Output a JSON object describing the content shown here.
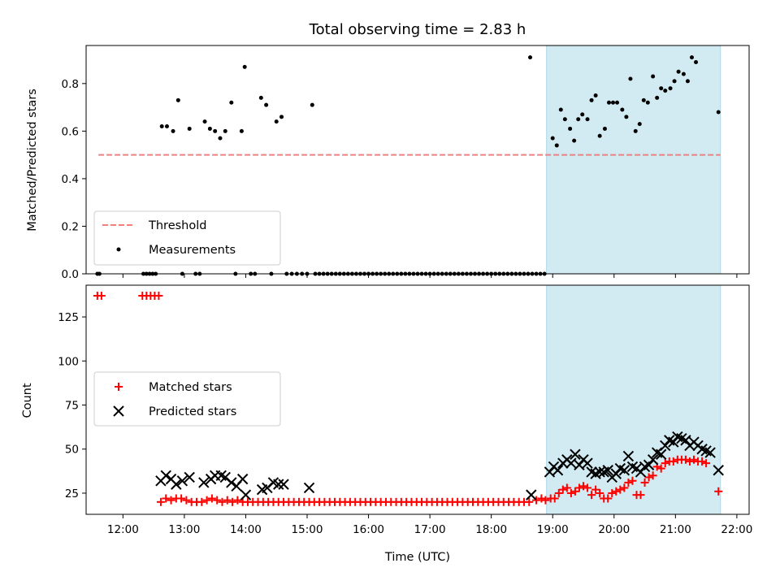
{
  "title": "Total observing time = 2.83 h",
  "colors": {
    "shade": "#add8e6",
    "threshold": "#f08080",
    "measurement": "#000000",
    "matched": "#ff0000",
    "predicted": "#000000"
  },
  "chart_data": [
    {
      "type": "scatter",
      "ylabel": "Matched/Predicted stars",
      "xlim": [
        "11:24",
        "22:12"
      ],
      "ylim": [
        0,
        0.96
      ],
      "yticks": [
        0.0,
        0.2,
        0.4,
        0.6,
        0.8
      ],
      "ytick_labels": [
        "0.0",
        "0.2",
        "0.4",
        "0.6",
        "0.8"
      ],
      "grid": false,
      "legend_position": "lower-left",
      "shaded_span": [
        "18:54",
        "21:44"
      ],
      "series": [
        {
          "name": "Threshold",
          "kind": "dashed-line",
          "x": [
            "11:36",
            "21:44"
          ],
          "y": [
            0.5,
            0.5
          ]
        },
        {
          "name": "Measurements",
          "kind": "dots",
          "points": [
            [
              "11:35",
              0
            ],
            [
              "11:37",
              0
            ],
            [
              "12:20",
              0
            ],
            [
              "12:23",
              0
            ],
            [
              "12:26",
              0
            ],
            [
              "12:29",
              0
            ],
            [
              "12:32",
              0
            ],
            [
              "12:38",
              0.62
            ],
            [
              "12:43",
              0.62
            ],
            [
              "12:49",
              0.6
            ],
            [
              "12:54",
              0.73
            ],
            [
              "12:58",
              0
            ],
            [
              "13:05",
              0.61
            ],
            [
              "13:11",
              0
            ],
            [
              "13:15",
              0
            ],
            [
              "13:20",
              0.64
            ],
            [
              "13:25",
              0.61
            ],
            [
              "13:30",
              0.6
            ],
            [
              "13:35",
              0.57
            ],
            [
              "13:40",
              0.6
            ],
            [
              "13:46",
              0.72
            ],
            [
              "13:50",
              0
            ],
            [
              "13:56",
              0.6
            ],
            [
              "13:59",
              0.87
            ],
            [
              "14:05",
              0
            ],
            [
              "14:09",
              0
            ],
            [
              "14:15",
              0.74
            ],
            [
              "14:20",
              0.71
            ],
            [
              "14:25",
              0
            ],
            [
              "14:30",
              0.64
            ],
            [
              "14:35",
              0.66
            ],
            [
              "14:40",
              0
            ],
            [
              "14:45",
              0
            ],
            [
              "14:50",
              0
            ],
            [
              "14:55",
              0
            ],
            [
              "15:00",
              0
            ],
            [
              "15:05",
              0.71
            ]
          ]
        },
        {
          "name": "",
          "kind": "zero-run",
          "from": "15:08",
          "to": "18:48",
          "step_minutes": 4,
          "y": 0
        },
        {
          "name": "",
          "kind": "dots",
          "points": [
            [
              "18:38",
              0.91
            ],
            [
              "18:52",
              0
            ],
            [
              "19:00",
              0.57
            ],
            [
              "19:04",
              0.54
            ],
            [
              "19:08",
              0.69
            ],
            [
              "19:12",
              0.65
            ],
            [
              "19:17",
              0.61
            ],
            [
              "19:21",
              0.56
            ],
            [
              "19:25",
              0.65
            ],
            [
              "19:29",
              0.67
            ],
            [
              "19:34",
              0.65
            ],
            [
              "19:38",
              0.73
            ],
            [
              "19:42",
              0.75
            ],
            [
              "19:46",
              0.58
            ],
            [
              "19:51",
              0.61
            ],
            [
              "19:55",
              0.72
            ],
            [
              "19:59",
              0.72
            ],
            [
              "20:03",
              0.72
            ],
            [
              "20:08",
              0.69
            ],
            [
              "20:12",
              0.66
            ],
            [
              "20:16",
              0.82
            ],
            [
              "20:21",
              0.6
            ],
            [
              "20:25",
              0.63
            ],
            [
              "20:29",
              0.73
            ],
            [
              "20:33",
              0.72
            ],
            [
              "20:38",
              0.83
            ],
            [
              "20:42",
              0.74
            ],
            [
              "20:46",
              0.78
            ],
            [
              "20:50",
              0.77
            ],
            [
              "20:55",
              0.78
            ],
            [
              "20:59",
              0.81
            ],
            [
              "21:03",
              0.85
            ],
            [
              "21:08",
              0.84
            ],
            [
              "21:12",
              0.81
            ],
            [
              "21:16",
              0.91
            ],
            [
              "21:20",
              0.89
            ],
            [
              "21:42",
              0.68
            ]
          ]
        }
      ]
    },
    {
      "type": "scatter",
      "xlabel": "Time (UTC)",
      "ylabel": "Count",
      "xlim": [
        "11:24",
        "22:12"
      ],
      "ylim": [
        13,
        143
      ],
      "yticks": [
        25,
        50,
        75,
        100,
        125
      ],
      "ytick_labels": [
        "25",
        "50",
        "75",
        "100",
        "125"
      ],
      "xticks": [
        "12:00",
        "13:00",
        "14:00",
        "15:00",
        "16:00",
        "17:00",
        "18:00",
        "19:00",
        "20:00",
        "21:00",
        "22:00"
      ],
      "xtick_labels": [
        "12:00",
        "13:00",
        "14:00",
        "15:00",
        "16:00",
        "17:00",
        "18:00",
        "19:00",
        "20:00",
        "21:00",
        "22:00"
      ],
      "grid": false,
      "legend_position": "center-left",
      "shaded_span": [
        "18:54",
        "21:44"
      ],
      "series": [
        {
          "name": "Matched stars",
          "marker": "+",
          "points": [
            [
              "11:35",
              137
            ],
            [
              "11:39",
              137
            ],
            [
              "12:19",
              137
            ],
            [
              "12:23",
              137
            ],
            [
              "12:27",
              137
            ],
            [
              "12:31",
              137
            ],
            [
              "12:35",
              137
            ],
            [
              "12:37",
              20
            ],
            [
              "12:42",
              22
            ],
            [
              "12:47",
              21
            ],
            [
              "12:52",
              22
            ],
            [
              "12:57",
              22
            ],
            [
              "13:02",
              21
            ],
            [
              "13:07",
              20
            ],
            [
              "13:12",
              20
            ],
            [
              "13:17",
              20
            ],
            [
              "13:22",
              21
            ],
            [
              "13:27",
              22
            ],
            [
              "13:32",
              21
            ],
            [
              "13:37",
              20
            ],
            [
              "13:42",
              21
            ],
            [
              "13:47",
              20
            ],
            [
              "13:52",
              21
            ],
            [
              "13:57",
              20
            ],
            [
              "18:44",
              21
            ],
            [
              "18:49",
              22
            ],
            [
              "18:53",
              21
            ],
            [
              "18:58",
              22
            ],
            [
              "19:02",
              22
            ],
            [
              "19:06",
              25
            ],
            [
              "19:10",
              27
            ],
            [
              "19:14",
              28
            ],
            [
              "19:18",
              25
            ],
            [
              "19:22",
              26
            ],
            [
              "19:26",
              28
            ],
            [
              "19:30",
              29
            ],
            [
              "19:34",
              28
            ],
            [
              "19:38",
              24
            ],
            [
              "19:42",
              27
            ],
            [
              "19:46",
              25
            ],
            [
              "19:50",
              22
            ],
            [
              "19:54",
              22
            ],
            [
              "19:58",
              25
            ],
            [
              "20:02",
              26
            ],
            [
              "20:06",
              27
            ],
            [
              "20:10",
              28
            ],
            [
              "20:14",
              31
            ],
            [
              "20:18",
              32
            ],
            [
              "20:22",
              24
            ],
            [
              "20:26",
              24
            ],
            [
              "20:30",
              31
            ],
            [
              "20:34",
              34
            ],
            [
              "20:38",
              35
            ],
            [
              "20:42",
              40
            ],
            [
              "20:46",
              39
            ],
            [
              "20:50",
              42
            ],
            [
              "20:54",
              43
            ],
            [
              "20:58",
              43
            ],
            [
              "21:02",
              44
            ],
            [
              "21:06",
              44
            ],
            [
              "21:10",
              44
            ],
            [
              "21:14",
              43
            ],
            [
              "21:18",
              44
            ],
            [
              "21:22",
              43
            ],
            [
              "21:26",
              43
            ],
            [
              "21:30",
              42
            ],
            [
              "21:42",
              26
            ]
          ]
        },
        {
          "name": "",
          "kind": "plus-run",
          "from": "14:02",
          "to": "18:40",
          "step_minutes": 5,
          "y": 20
        },
        {
          "name": "Predicted stars",
          "marker": "x",
          "points": [
            [
              "12:37",
              32
            ],
            [
              "12:42",
              35
            ],
            [
              "12:47",
              33
            ],
            [
              "12:52",
              30
            ],
            [
              "12:58",
              32
            ],
            [
              "13:05",
              34
            ],
            [
              "13:19",
              31
            ],
            [
              "13:26",
              33
            ],
            [
              "13:30",
              35
            ],
            [
              "13:36",
              35
            ],
            [
              "13:40",
              34
            ],
            [
              "13:46",
              31
            ],
            [
              "13:51",
              29
            ],
            [
              "13:57",
              33
            ],
            [
              "14:00",
              24
            ],
            [
              "14:16",
              27
            ],
            [
              "14:21",
              28
            ],
            [
              "14:27",
              31
            ],
            [
              "14:32",
              30
            ],
            [
              "14:37",
              30
            ],
            [
              "15:02",
              28
            ],
            [
              "18:39",
              24
            ],
            [
              "18:57",
              37
            ],
            [
              "19:01",
              40
            ],
            [
              "19:05",
              38
            ],
            [
              "19:10",
              42
            ],
            [
              "19:14",
              44
            ],
            [
              "19:18",
              42
            ],
            [
              "19:22",
              47
            ],
            [
              "19:26",
              41
            ],
            [
              "19:30",
              44
            ],
            [
              "19:34",
              42
            ],
            [
              "19:38",
              37
            ],
            [
              "19:42",
              36
            ],
            [
              "19:46",
              37
            ],
            [
              "19:50",
              37
            ],
            [
              "19:54",
              38
            ],
            [
              "19:58",
              34
            ],
            [
              "20:02",
              36
            ],
            [
              "20:06",
              39
            ],
            [
              "20:10",
              38
            ],
            [
              "20:14",
              46
            ],
            [
              "20:18",
              40
            ],
            [
              "20:22",
              39
            ],
            [
              "20:26",
              37
            ],
            [
              "20:30",
              40
            ],
            [
              "20:34",
              41
            ],
            [
              "20:38",
              44
            ],
            [
              "20:42",
              48
            ],
            [
              "20:46",
              47
            ],
            [
              "20:50",
              52
            ],
            [
              "20:54",
              55
            ],
            [
              "20:58",
              54
            ],
            [
              "21:02",
              57
            ],
            [
              "21:06",
              56
            ],
            [
              "21:10",
              55
            ],
            [
              "21:14",
              52
            ],
            [
              "21:18",
              54
            ],
            [
              "21:22",
              52
            ],
            [
              "21:26",
              50
            ],
            [
              "21:30",
              49
            ],
            [
              "21:34",
              48
            ],
            [
              "21:42",
              38
            ]
          ]
        }
      ]
    }
  ]
}
